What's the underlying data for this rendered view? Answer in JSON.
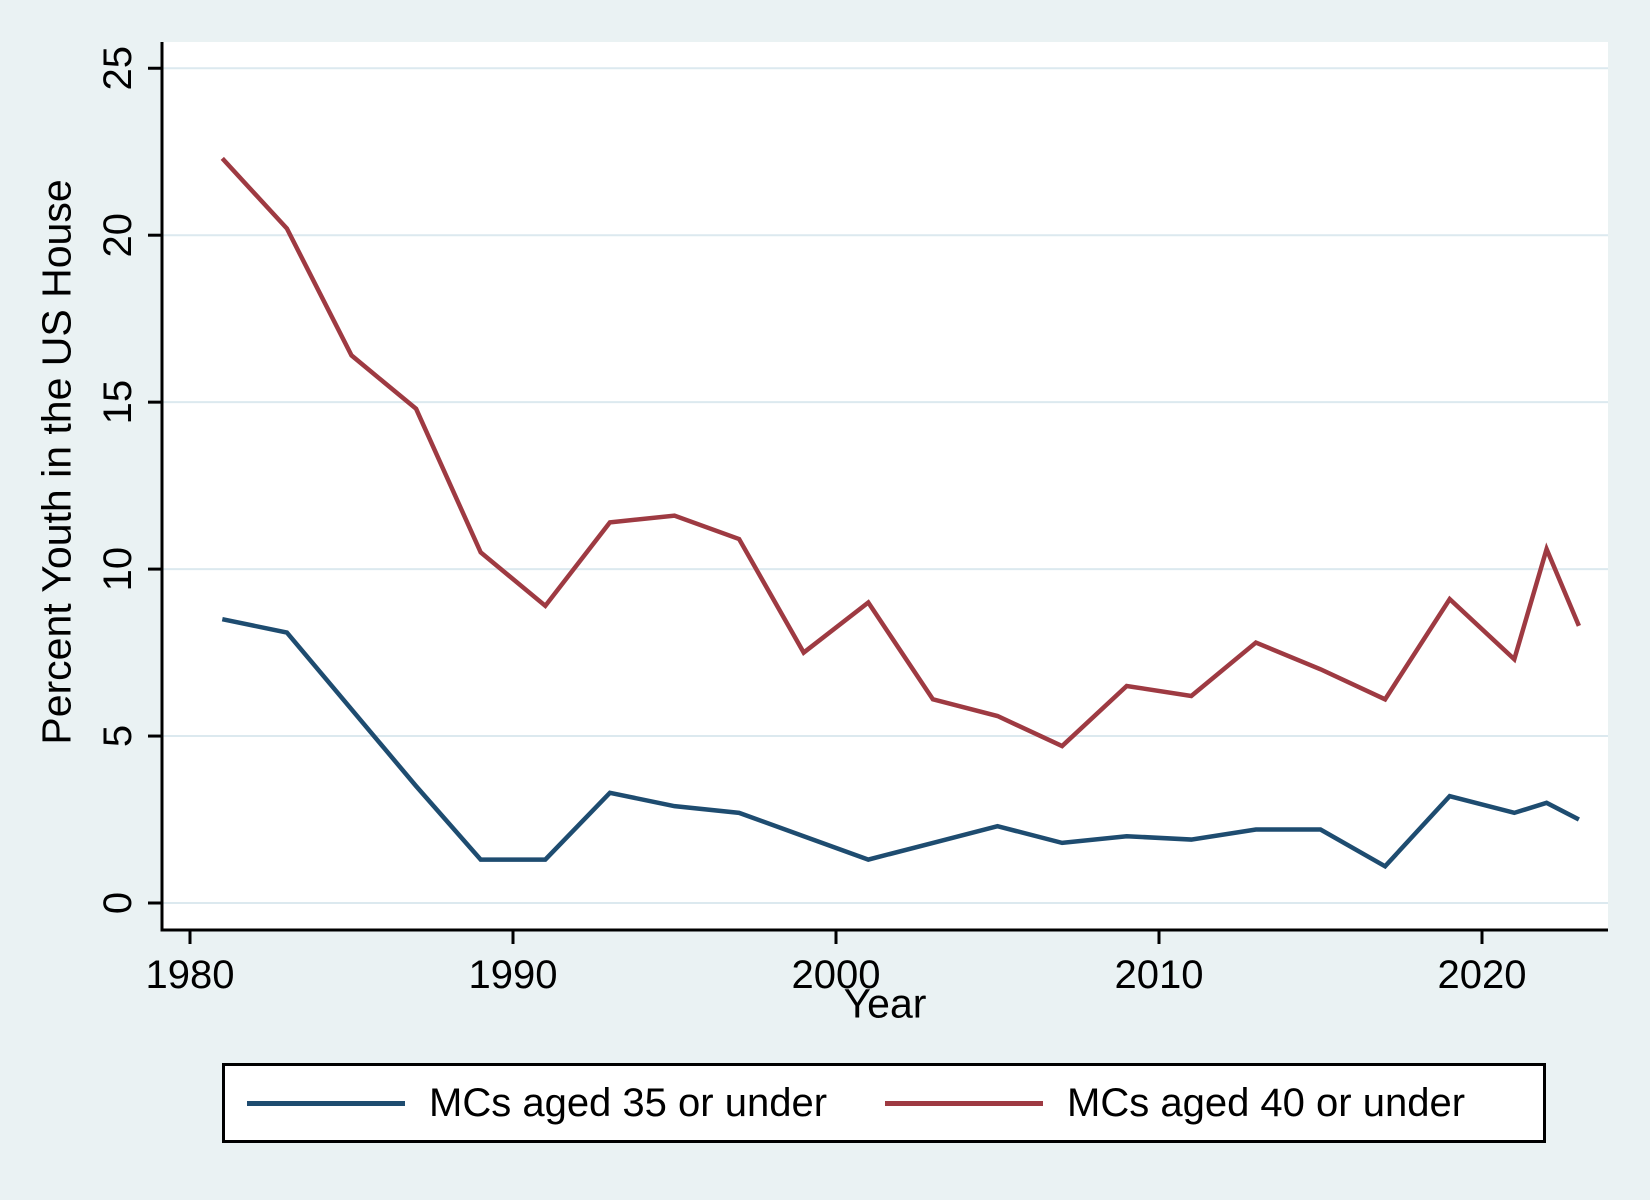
{
  "figure": {
    "background_color": "#eaf2f3",
    "plot_background_color": "#ffffff",
    "grid_color": "#dce9ef",
    "axis_color": "#000000",
    "tick_label_color": "#000000"
  },
  "chart_data": {
    "type": "line",
    "title": "",
    "xlabel": "Year",
    "ylabel": "Percent Youth in the US House",
    "x_ticks": [
      1980,
      1990,
      2000,
      2010,
      2020
    ],
    "y_ticks": [
      0,
      5,
      10,
      15,
      20,
      25
    ],
    "xlim": [
      1979.2,
      2023.9
    ],
    "ylim": [
      0,
      25
    ],
    "grid": "horizontal",
    "legend_position": "bottom",
    "x": [
      1981,
      1983,
      1985,
      1987,
      1989,
      1991,
      1993,
      1995,
      1997,
      1999,
      2001,
      2003,
      2005,
      2007,
      2009,
      2011,
      2013,
      2015,
      2017,
      2019,
      2021,
      2022,
      2023
    ],
    "series": [
      {
        "name": "MCs aged 35 or under",
        "color": "#1e4c70",
        "values": [
          8.5,
          8.1,
          5.8,
          3.5,
          1.3,
          1.3,
          3.3,
          2.9,
          2.7,
          2.0,
          1.3,
          1.8,
          2.3,
          1.8,
          2.0,
          1.9,
          2.2,
          2.2,
          1.1,
          3.2,
          2.7,
          3.0,
          2.5
        ]
      },
      {
        "name": "MCs aged 40 or under",
        "color": "#9e3a42",
        "values": [
          22.3,
          20.2,
          16.4,
          14.8,
          10.5,
          8.9,
          11.4,
          11.6,
          10.9,
          7.5,
          9.0,
          6.1,
          5.6,
          4.7,
          6.5,
          6.2,
          7.8,
          7.0,
          6.1,
          9.1,
          7.3,
          10.6,
          8.3
        ]
      }
    ]
  }
}
